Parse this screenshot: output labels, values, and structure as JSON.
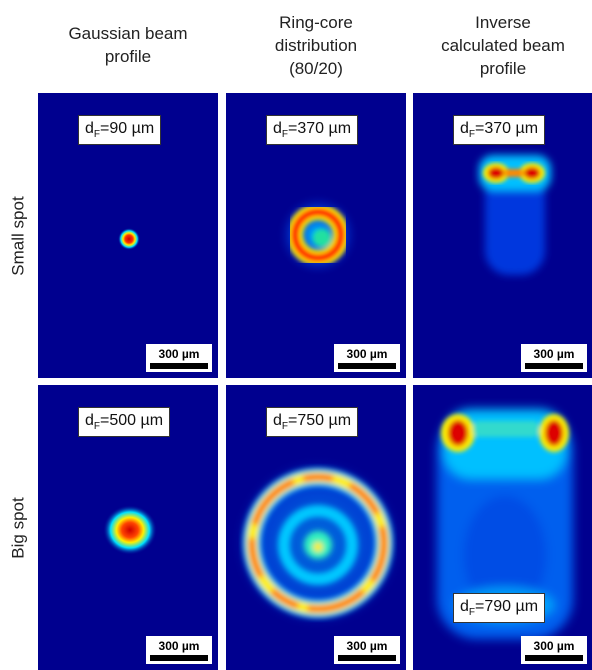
{
  "columns": [
    {
      "lines": [
        "Gaussian beam",
        "profile"
      ]
    },
    {
      "lines": [
        "Ring-core",
        "distribution",
        "(80/20)"
      ]
    },
    {
      "lines": [
        "Inverse",
        "calculated beam",
        "profile"
      ]
    }
  ],
  "rows": [
    {
      "label": "Small spot"
    },
    {
      "label": "Big spot"
    }
  ],
  "panels": {
    "small_gaussian": {
      "dlabel": {
        "prefix": "d",
        "sub": "F",
        "value": "=90 µm"
      },
      "scale": "300 µm"
    },
    "small_ring": {
      "dlabel": {
        "prefix": "d",
        "sub": "F",
        "value": "=370 µm"
      },
      "scale": "300 µm"
    },
    "small_inverse": {
      "dlabel": {
        "prefix": "d",
        "sub": "F",
        "value": "=370 µm"
      },
      "scale": "300 µm"
    },
    "big_gaussian": {
      "dlabel": {
        "prefix": "d",
        "sub": "F",
        "value": "=500 µm"
      },
      "scale": "300 µm"
    },
    "big_ring": {
      "dlabel": {
        "prefix": "d",
        "sub": "F",
        "value": "=750 µm"
      },
      "scale": "300 µm"
    },
    "big_inverse": {
      "dlabel": {
        "prefix": "d",
        "sub": "F",
        "value": "=790 µm"
      },
      "scale": "300 µm"
    }
  },
  "colors": {
    "background": "#00008f",
    "cool": "#00a0ff",
    "warm": "#ffee00",
    "hot": "#cc0000"
  }
}
